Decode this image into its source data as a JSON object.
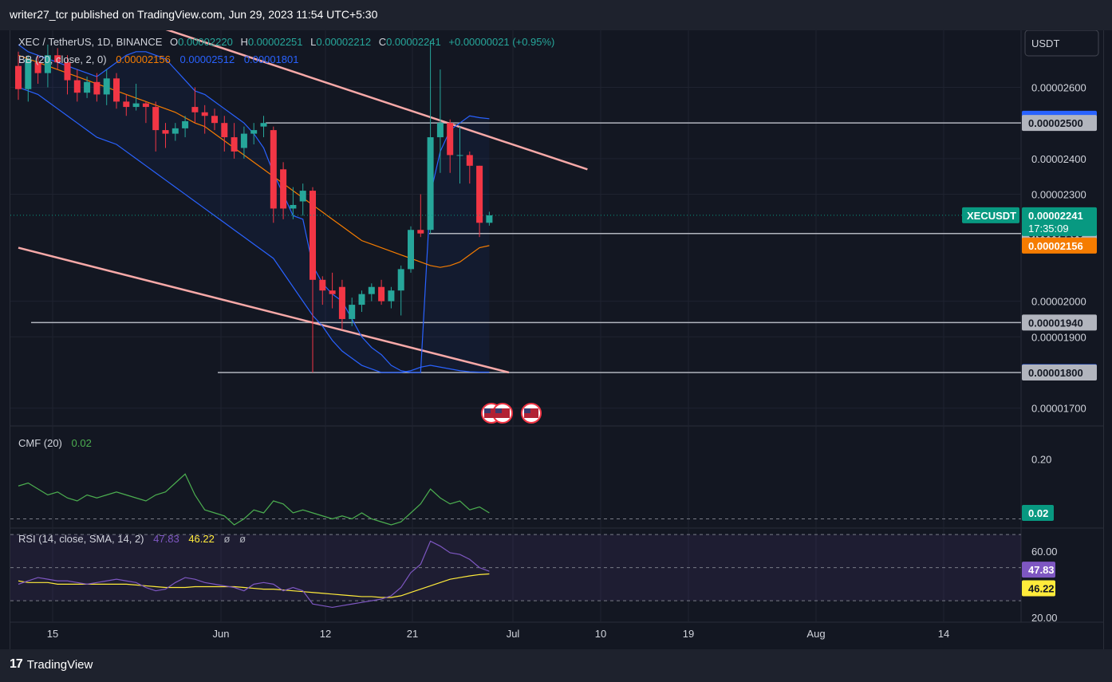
{
  "header": {
    "published_text": "writer27_tcr published on TradingView.com, Jun 29, 2023 11:54 UTC+5:30"
  },
  "footer": {
    "brand": "TradingView"
  },
  "symbol_legend": {
    "title": "XEC / TetherUS, 1D, BINANCE",
    "o_label": "O",
    "o_value": "0.00002220",
    "h_label": "H",
    "h_value": "0.00002251",
    "l_label": "L",
    "l_value": "0.00002212",
    "c_label": "C",
    "c_value": "0.00002241",
    "change": "+0.00000021 (+0.95%)"
  },
  "bb_legend": {
    "title": "BB (20, close, 2, 0)",
    "basis": "0.00002156",
    "upper": "0.00002512",
    "lower": "0.00001801"
  },
  "cmf_legend": {
    "title": "CMF (20)",
    "value": "0.02"
  },
  "rsi_legend": {
    "title": "RSI (14, close, SMA, 14, 2)",
    "rsi": "47.83",
    "sma": "46.22",
    "extra1": "ø",
    "extra2": "ø"
  },
  "currency_button": "USDT",
  "price_axis": {
    "ticks": [
      "0.00002600",
      "0.00002400",
      "0.00002300",
      "0.00002000",
      "0.00001900",
      "0.00001700"
    ],
    "labels": [
      {
        "text": "0.00002512",
        "value": 2.512e-05,
        "color": "#2962ff",
        "fg": "#ffffff"
      },
      {
        "text": "0.00002500",
        "value": 2.5e-05,
        "color": "#b2b5be",
        "fg": "#131722"
      },
      {
        "text": "0.00002190",
        "value": 2.19e-05,
        "color": "#b2b5be",
        "fg": "#131722"
      },
      {
        "text": "0.00002156",
        "value": 2.156e-05,
        "color": "#f57c00",
        "fg": "#ffffff"
      },
      {
        "text": "0.00001940",
        "value": 1.94e-05,
        "color": "#b2b5be",
        "fg": "#131722"
      },
      {
        "text": "0.00001801",
        "value": 1.801e-05,
        "color": "#2962ff",
        "fg": "#ffffff"
      },
      {
        "text": "0.00001800",
        "value": 1.8e-05,
        "color": "#b2b5be",
        "fg": "#131722"
      }
    ],
    "last_price": {
      "symbol": "XECUSDT",
      "price": "0.00002241",
      "countdown": "17:35:09",
      "color": "#089981"
    }
  },
  "cmf_axis": {
    "ticks": [
      "0.20"
    ],
    "last": "0.02",
    "last_color": "#089981"
  },
  "rsi_axis": {
    "ticks": [
      "60.00",
      "20.00"
    ],
    "rsi_label": "47.83",
    "rsi_color": "#7e57c2",
    "sma_label": "46.22",
    "sma_color": "#ffeb3b"
  },
  "time_axis": [
    "15",
    "Jun",
    "12",
    "21",
    "Jul",
    "10",
    "19",
    "Aug",
    "14"
  ],
  "colors": {
    "up": "#26a69a",
    "down": "#f23645",
    "bb_upper": "#2962ff",
    "bb_lower": "#2962ff",
    "bb_basis": "#f57c00",
    "trendline": "#f7a9a8",
    "hline": "#b2b5be",
    "cmf": "#4caf50",
    "rsi": "#7e57c2",
    "rsi_sma": "#ffeb3b"
  },
  "chart_data": {
    "type": "candlestick",
    "ylim": [
      1.65e-05,
      2.76e-05
    ],
    "candles": [
      {
        "o": 2.66e-05,
        "h": 2.7e-05,
        "l": 2.565e-05,
        "c": 2.595e-05
      },
      {
        "o": 2.595e-05,
        "h": 2.69e-05,
        "l": 2.56e-05,
        "c": 2.68e-05
      },
      {
        "o": 2.67e-05,
        "h": 2.69e-05,
        "l": 2.61e-05,
        "c": 2.64e-05
      },
      {
        "o": 2.64e-05,
        "h": 2.72e-05,
        "l": 2.6e-05,
        "c": 2.69e-05
      },
      {
        "o": 2.69e-05,
        "h": 2.71e-05,
        "l": 2.65e-05,
        "c": 2.67e-05
      },
      {
        "o": 2.67e-05,
        "h": 2.69e-05,
        "l": 2.58e-05,
        "c": 2.62e-05
      },
      {
        "o": 2.62e-05,
        "h": 2.65e-05,
        "l": 2.56e-05,
        "c": 2.585e-05
      },
      {
        "o": 2.585e-05,
        "h": 2.63e-05,
        "l": 2.57e-05,
        "c": 2.615e-05
      },
      {
        "o": 2.615e-05,
        "h": 2.64e-05,
        "l": 2.56e-05,
        "c": 2.58e-05
      },
      {
        "o": 2.58e-05,
        "h": 2.65e-05,
        "l": 2.55e-05,
        "c": 2.625e-05
      },
      {
        "o": 2.625e-05,
        "h": 2.64e-05,
        "l": 2.54e-05,
        "c": 2.56e-05
      },
      {
        "o": 2.56e-05,
        "h": 2.58e-05,
        "l": 2.52e-05,
        "c": 2.545e-05
      },
      {
        "o": 2.545e-05,
        "h": 2.61e-05,
        "l": 2.535e-05,
        "c": 2.555e-05
      },
      {
        "o": 2.555e-05,
        "h": 2.56e-05,
        "l": 2.5e-05,
        "c": 2.545e-05
      },
      {
        "o": 2.545e-05,
        "h": 2.56e-05,
        "l": 2.42e-05,
        "c": 2.48e-05
      },
      {
        "o": 2.48e-05,
        "h": 2.5e-05,
        "l": 2.43e-05,
        "c": 2.47e-05
      },
      {
        "o": 2.47e-05,
        "h": 2.5e-05,
        "l": 2.45e-05,
        "c": 2.485e-05
      },
      {
        "o": 2.485e-05,
        "h": 2.52e-05,
        "l": 2.46e-05,
        "c": 2.505e-05
      },
      {
        "o": 2.545e-05,
        "h": 2.6e-05,
        "l": 2.5e-05,
        "c": 2.53e-05
      },
      {
        "o": 2.53e-05,
        "h": 2.55e-05,
        "l": 2.47e-05,
        "c": 2.52e-05
      },
      {
        "o": 2.52e-05,
        "h": 2.54e-05,
        "l": 2.48e-05,
        "c": 2.5e-05
      },
      {
        "o": 2.5e-05,
        "h": 2.52e-05,
        "l": 2.42e-05,
        "c": 2.46e-05
      },
      {
        "o": 2.46e-05,
        "h": 2.5e-05,
        "l": 2.4e-05,
        "c": 2.42e-05
      },
      {
        "o": 2.43e-05,
        "h": 2.49e-05,
        "l": 2.4e-05,
        "c": 2.47e-05
      },
      {
        "o": 2.47e-05,
        "h": 2.5e-05,
        "l": 2.44e-05,
        "c": 2.48e-05
      },
      {
        "o": 2.49e-05,
        "h": 2.52e-05,
        "l": 2.46e-05,
        "c": 2.5e-05
      },
      {
        "o": 2.48e-05,
        "h": 2.49e-05,
        "l": 2.22e-05,
        "c": 2.26e-05
      },
      {
        "o": 2.37e-05,
        "h": 2.39e-05,
        "l": 2.23e-05,
        "c": 2.26e-05
      },
      {
        "o": 2.26e-05,
        "h": 2.32e-05,
        "l": 2.23e-05,
        "c": 2.27e-05
      },
      {
        "o": 2.28e-05,
        "h": 2.33e-05,
        "l": 2.24e-05,
        "c": 2.31e-05
      },
      {
        "o": 2.31e-05,
        "h": 2.32e-05,
        "l": 1.8e-05,
        "c": 2.06e-05
      },
      {
        "o": 2.06e-05,
        "h": 2.07e-05,
        "l": 1.99e-05,
        "c": 2.03e-05
      },
      {
        "o": 2.03e-05,
        "h": 2.08e-05,
        "l": 1.98e-05,
        "c": 2.02e-05
      },
      {
        "o": 2.04e-05,
        "h": 2.06e-05,
        "l": 1.92e-05,
        "c": 1.95e-05
      },
      {
        "o": 1.95e-05,
        "h": 2.01e-05,
        "l": 1.93e-05,
        "c": 1.99e-05
      },
      {
        "o": 1.99e-05,
        "h": 2.03e-05,
        "l": 1.97e-05,
        "c": 2.02e-05
      },
      {
        "o": 2.02e-05,
        "h": 2.05e-05,
        "l": 2e-05,
        "c": 2.04e-05
      },
      {
        "o": 2.04e-05,
        "h": 2.06e-05,
        "l": 1.99e-05,
        "c": 2e-05
      },
      {
        "o": 2e-05,
        "h": 2.04e-05,
        "l": 1.98e-05,
        "c": 2.03e-05
      },
      {
        "o": 2.03e-05,
        "h": 2.1e-05,
        "l": 1.96e-05,
        "c": 2.09e-05
      },
      {
        "o": 2.09e-05,
        "h": 2.21e-05,
        "l": 2.08e-05,
        "c": 2.2e-05
      },
      {
        "o": 2.2e-05,
        "h": 2.3e-05,
        "l": 2.18e-05,
        "c": 2.19e-05
      },
      {
        "o": 2.2e-05,
        "h": 2.73e-05,
        "l": 2.19e-05,
        "c": 2.46e-05
      },
      {
        "o": 2.46e-05,
        "h": 2.65e-05,
        "l": 2.36e-05,
        "c": 2.5e-05
      },
      {
        "o": 2.5e-05,
        "h": 2.51e-05,
        "l": 2.36e-05,
        "c": 2.41e-05
      },
      {
        "o": 2.41e-05,
        "h": 2.49e-05,
        "l": 2.33e-05,
        "c": 2.41e-05
      },
      {
        "o": 2.41e-05,
        "h": 2.42e-05,
        "l": 2.33e-05,
        "c": 2.38e-05
      },
      {
        "o": 2.38e-05,
        "h": 2.38e-05,
        "l": 2.18e-05,
        "c": 2.22e-05
      },
      {
        "o": 2.22e-05,
        "h": 2.251e-05,
        "l": 2.212e-05,
        "c": 2.241e-05
      }
    ],
    "bb_upper": [
      2.72e-05,
      2.7e-05,
      2.69e-05,
      2.68e-05,
      2.67e-05,
      2.66e-05,
      2.65e-05,
      2.64e-05,
      2.63e-05,
      2.65e-05,
      2.67e-05,
      2.69e-05,
      2.7e-05,
      2.7e-05,
      2.69e-05,
      2.68e-05,
      2.65e-05,
      2.62e-05,
      2.59e-05,
      2.58e-05,
      2.56e-05,
      2.54e-05,
      2.52e-05,
      2.5e-05,
      2.47e-05,
      2.43e-05,
      2.36e-05,
      2.3e-05,
      2.24e-05,
      2.23e-05,
      2.1e-05,
      2.05e-05,
      2.02e-05,
      2e-05,
      1.95e-05,
      1.9e-05,
      1.87e-05,
      1.85e-05,
      1.82e-05,
      1.805e-05,
      1.8e-05,
      1.8e-05,
      2.3e-05,
      2.42e-05,
      2.48e-05,
      2.5e-05,
      2.52e-05,
      2.515e-05,
      2.512e-05
    ],
    "bb_basis": [
      2.69e-05,
      2.68e-05,
      2.67e-05,
      2.66e-05,
      2.65e-05,
      2.64e-05,
      2.63e-05,
      2.62e-05,
      2.61e-05,
      2.6e-05,
      2.59e-05,
      2.58e-05,
      2.57e-05,
      2.56e-05,
      2.55e-05,
      2.54e-05,
      2.53e-05,
      2.515e-05,
      2.5e-05,
      2.49e-05,
      2.47e-05,
      2.45e-05,
      2.43e-05,
      2.41e-05,
      2.39e-05,
      2.37e-05,
      2.35e-05,
      2.33e-05,
      2.31e-05,
      2.29e-05,
      2.27e-05,
      2.25e-05,
      2.23e-05,
      2.21e-05,
      2.19e-05,
      2.17e-05,
      2.16e-05,
      2.15e-05,
      2.14e-05,
      2.13e-05,
      2.12e-05,
      2.11e-05,
      2.1e-05,
      2.095e-05,
      2.1e-05,
      2.11e-05,
      2.13e-05,
      2.15e-05,
      2.156e-05
    ],
    "bb_lower": [
      2.6e-05,
      2.59e-05,
      2.58e-05,
      2.56e-05,
      2.54e-05,
      2.52e-05,
      2.5e-05,
      2.48e-05,
      2.46e-05,
      2.45e-05,
      2.44e-05,
      2.42e-05,
      2.4e-05,
      2.38e-05,
      2.36e-05,
      2.34e-05,
      2.32e-05,
      2.3e-05,
      2.28e-05,
      2.26e-05,
      2.24e-05,
      2.22e-05,
      2.2e-05,
      2.18e-05,
      2.16e-05,
      2.14e-05,
      2.12e-05,
      2.08e-05,
      2.04e-05,
      2e-05,
      1.96e-05,
      1.93e-05,
      1.89e-05,
      1.86e-05,
      1.84e-05,
      1.82e-05,
      1.81e-05,
      1.8e-05,
      1.8e-05,
      1.8e-05,
      1.805e-05,
      1.815e-05,
      1.82e-05,
      1.815e-05,
      1.81e-05,
      1.805e-05,
      1.802e-05,
      1.801e-05,
      1.801e-05
    ],
    "hlines": [
      2.5e-05,
      2.19e-05,
      1.94e-05,
      1.8e-05
    ],
    "trendlines": [
      {
        "from": [
          0,
          2.9e-05
        ],
        "to": [
          58,
          2.37e-05
        ]
      },
      {
        "from": [
          0,
          2.15e-05
        ],
        "to": [
          50,
          1.8e-05
        ]
      }
    ],
    "cmf": {
      "ylim": [
        -0.02,
        0.3
      ],
      "zero_line": 0.0,
      "values": [
        0.11,
        0.12,
        0.1,
        0.08,
        0.09,
        0.07,
        0.06,
        0.08,
        0.07,
        0.08,
        0.09,
        0.08,
        0.07,
        0.06,
        0.08,
        0.09,
        0.12,
        0.15,
        0.08,
        0.03,
        0.02,
        0.01,
        -0.02,
        0.0,
        0.03,
        0.02,
        0.06,
        0.05,
        0.02,
        0.03,
        0.02,
        0.01,
        0.0,
        0.01,
        0.0,
        0.02,
        0.0,
        -0.01,
        -0.02,
        -0.01,
        0.02,
        0.05,
        0.1,
        0.07,
        0.05,
        0.06,
        0.03,
        0.04,
        0.02
      ]
    },
    "rsi": {
      "ylim": [
        18,
        72
      ],
      "band": [
        70,
        30
      ],
      "mid": 50,
      "values": [
        40,
        42,
        44,
        43,
        42,
        42,
        41,
        40,
        41,
        42,
        43,
        42,
        41,
        38,
        36,
        37,
        41,
        44,
        43,
        41,
        40,
        39,
        38,
        36,
        40,
        41,
        40,
        36,
        38,
        36,
        28,
        27,
        26,
        27,
        28,
        29,
        30,
        31,
        33,
        38,
        47,
        52,
        66,
        63,
        59,
        58,
        55,
        50,
        47.83
      ],
      "sma": [
        42,
        41,
        41,
        41,
        40,
        40,
        40,
        40,
        40,
        40,
        40,
        40,
        39.5,
        39,
        38.5,
        38,
        38,
        38,
        38.5,
        38.5,
        38.5,
        38.5,
        38.5,
        38,
        37.5,
        37,
        37,
        36.5,
        36,
        35.5,
        35,
        34.5,
        34,
        33.5,
        33,
        32.5,
        32.5,
        32,
        32,
        33,
        35,
        37,
        39,
        41,
        43,
        44,
        45,
        45.8,
        46.22
      ]
    }
  }
}
